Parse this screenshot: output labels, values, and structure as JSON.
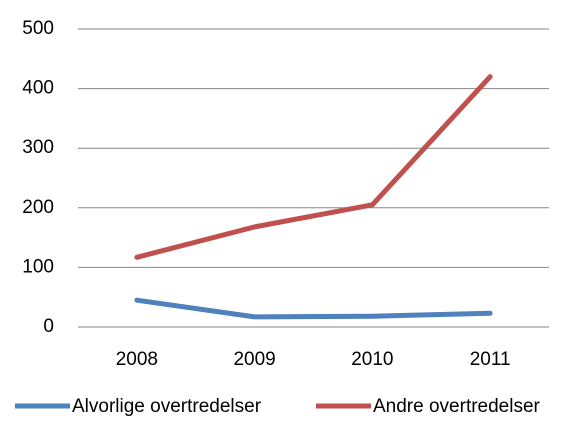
{
  "chart_data": {
    "type": "line",
    "categories": [
      "2008",
      "2009",
      "2010",
      "2011"
    ],
    "series": [
      {
        "name": "Alvorlige overtredelser",
        "color": "#4f81bd",
        "values": [
          45,
          17,
          18,
          23
        ]
      },
      {
        "name": "Andre overtredelser",
        "color": "#c0504d",
        "values": [
          117,
          168,
          205,
          420
        ]
      }
    ],
    "ylim": [
      0,
      500
    ],
    "yticks": [
      0,
      100,
      200,
      300,
      400,
      500
    ],
    "grid": true,
    "legend": "bottom"
  }
}
